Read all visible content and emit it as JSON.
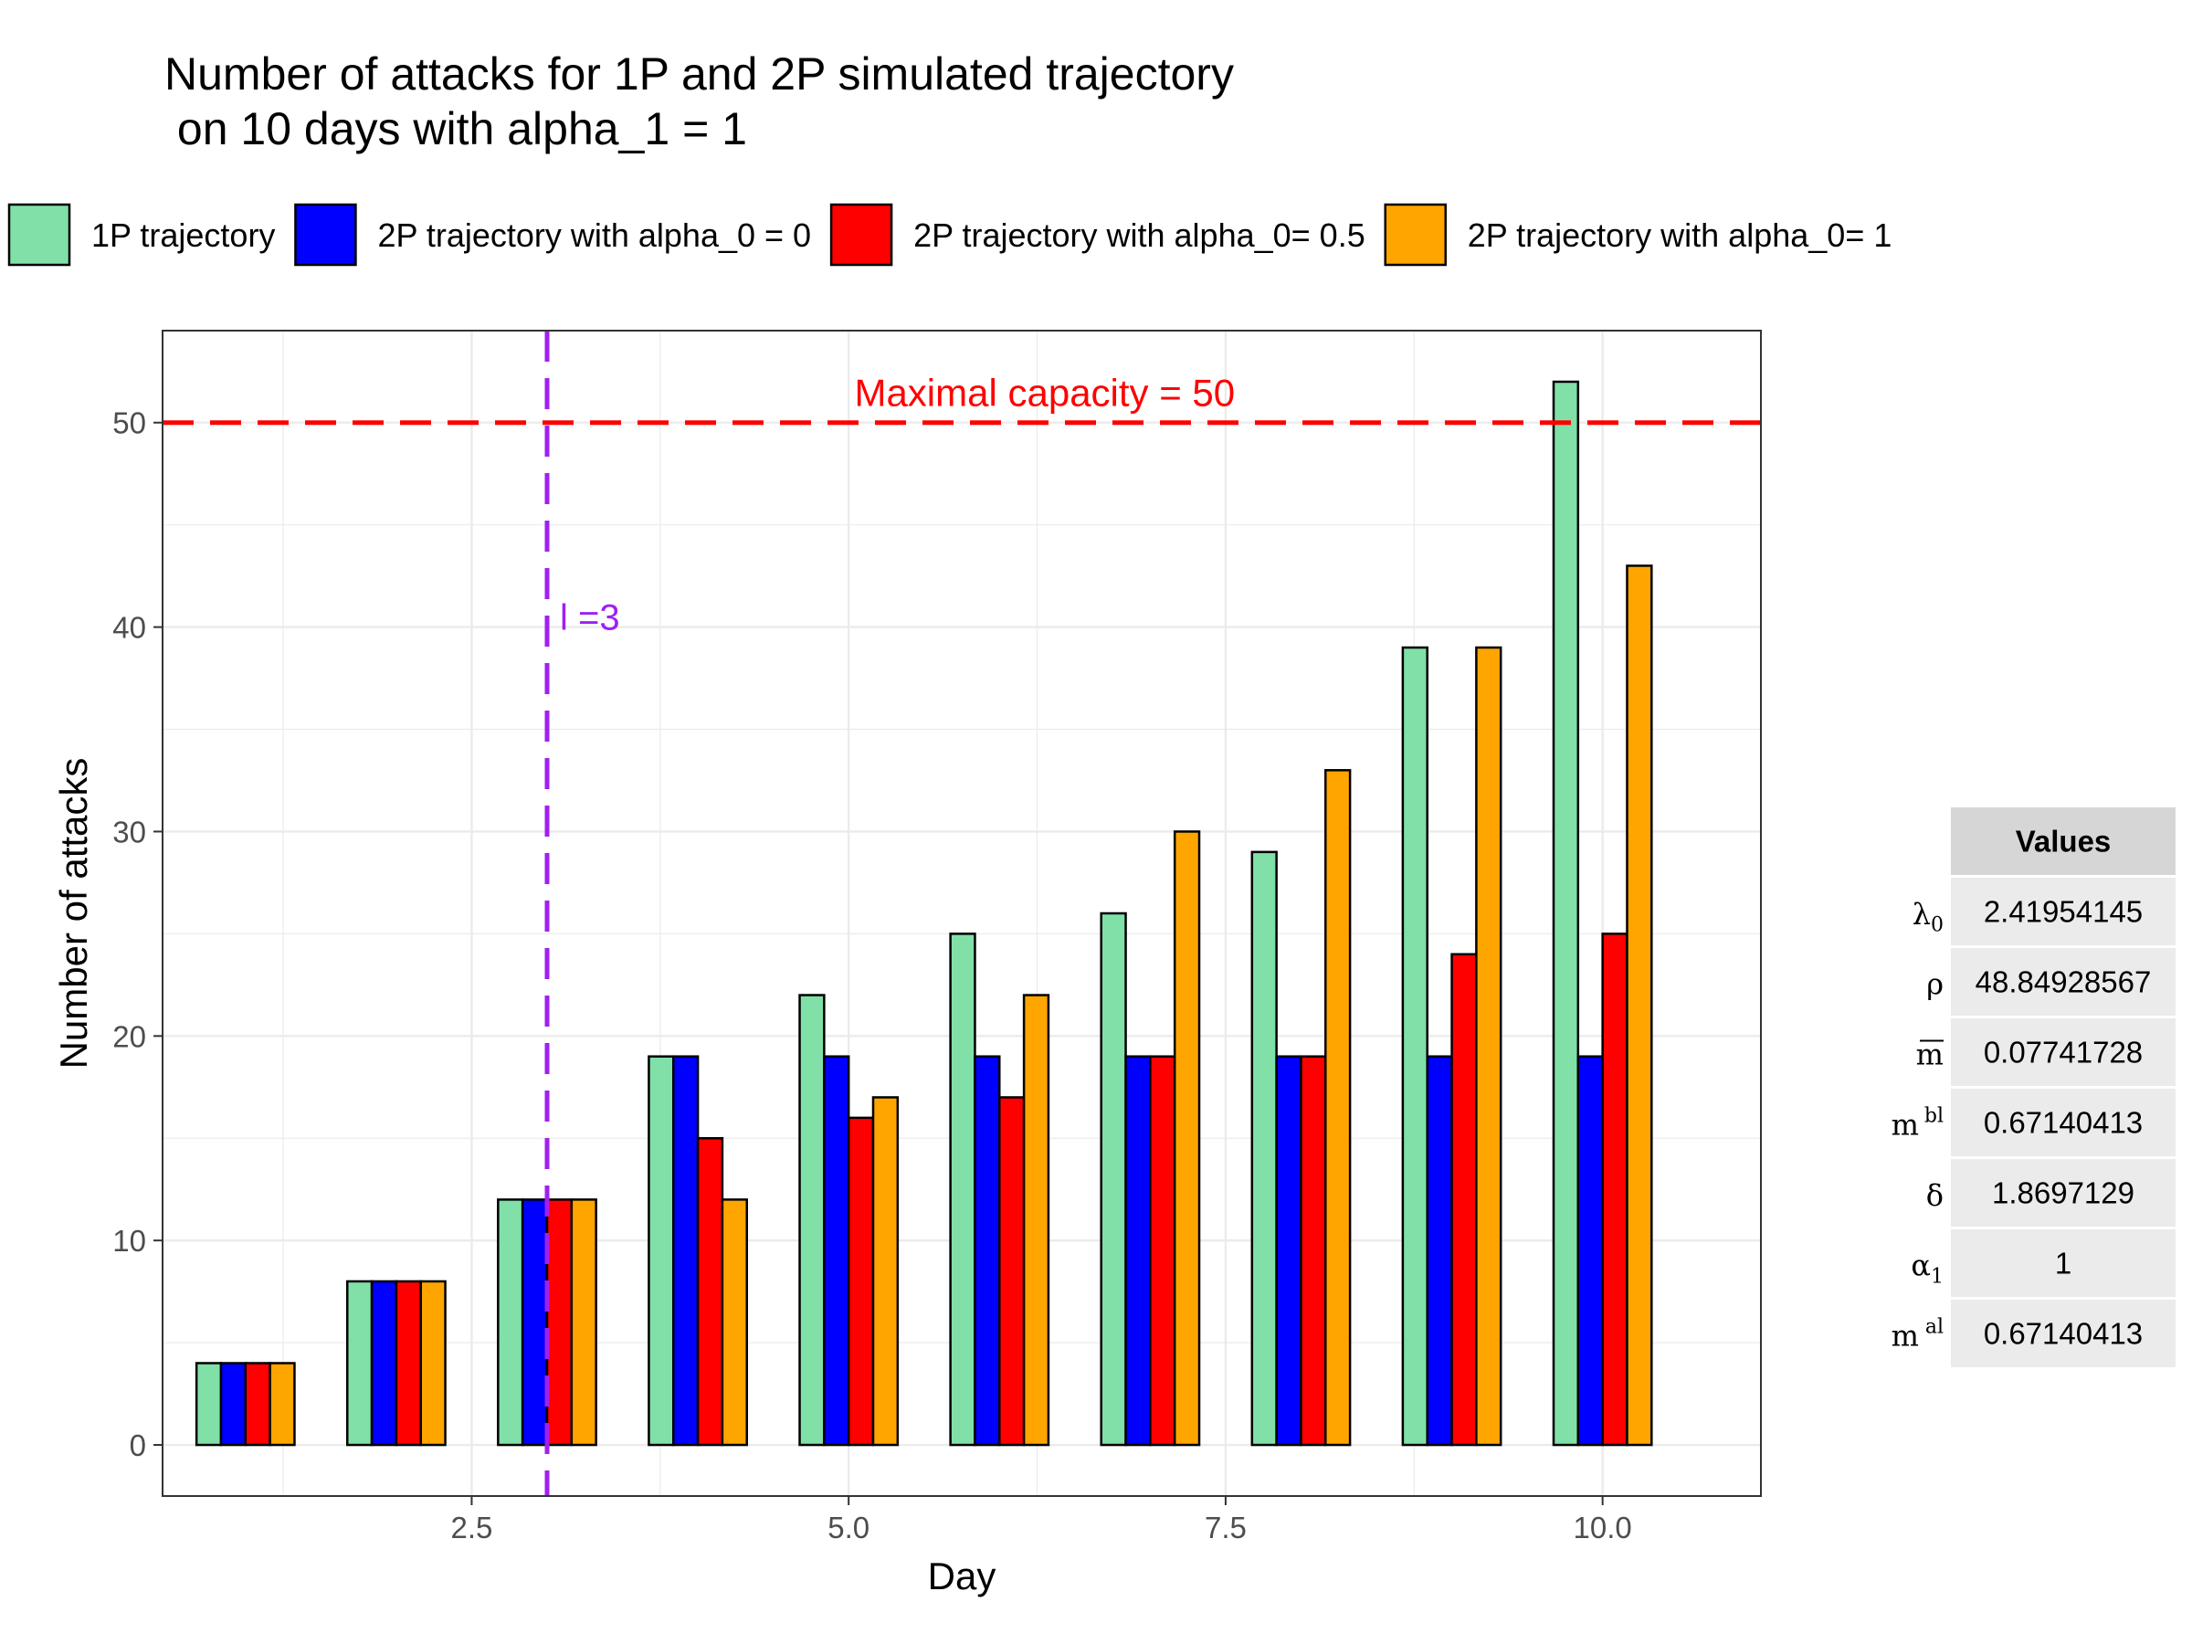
{
  "chart_data": {
    "type": "bar",
    "title_lines": [
      "Number of attacks for 1P and 2P simulated trajectory",
      " on 10 days with alpha_1 = 1"
    ],
    "xlabel": "Day",
    "ylabel": "Number of attacks",
    "x": [
      1,
      2,
      3,
      4,
      5,
      6,
      7,
      8,
      9,
      10
    ],
    "xlim": [
      0.45,
      11.05
    ],
    "ylim": [
      -2.5,
      54.5
    ],
    "x_ticks": [
      2.5,
      5.0,
      7.5,
      10.0
    ],
    "x_tick_labels": [
      "2.5",
      "5.0",
      "7.5",
      "10.0"
    ],
    "y_ticks": [
      0,
      10,
      20,
      30,
      40,
      50
    ],
    "y_tick_labels": [
      "0",
      "10",
      "20",
      "30",
      "40",
      "50"
    ],
    "grid": true,
    "legend_position": "top",
    "series": [
      {
        "name": "1P trajectory",
        "color": "#80e0a8",
        "values": [
          4,
          8,
          12,
          19,
          22,
          25,
          26,
          29,
          39,
          52
        ]
      },
      {
        "name": "2P trajectory with alpha_0 = 0",
        "color": "#0000ff",
        "values": [
          4,
          8,
          12,
          19,
          19,
          19,
          19,
          19,
          19,
          19
        ]
      },
      {
        "name": "2P trajectory with alpha_0= 0.5",
        "color": "#ff0000",
        "values": [
          4,
          8,
          12,
          15,
          16,
          17,
          19,
          19,
          24,
          25
        ]
      },
      {
        "name": "2P trajectory with alpha_0= 1",
        "color": "#ffa500",
        "values": [
          4,
          8,
          12,
          12,
          17,
          22,
          30,
          33,
          39,
          43
        ]
      }
    ],
    "hline": {
      "y": 50,
      "color": "#ff0000",
      "label": "Maximal capacity = 50",
      "label_x": 6.3
    },
    "vline": {
      "x": 3,
      "color": "#a020f0",
      "label": "l =3",
      "label_y": 40.5
    }
  },
  "param_table": {
    "header": "Values",
    "rows": [
      {
        "symbol": "λ",
        "sub": "0",
        "sup": "",
        "overline": false,
        "value": "2.41954145"
      },
      {
        "symbol": "ρ",
        "sub": "",
        "sup": "",
        "overline": false,
        "value": "48.84928567"
      },
      {
        "symbol": "m",
        "sub": "",
        "sup": "",
        "overline": true,
        "value": "0.07741728"
      },
      {
        "symbol": "m",
        "sub": "",
        "sup": "bl",
        "overline": false,
        "value": "0.67140413"
      },
      {
        "symbol": "δ",
        "sub": "",
        "sup": "",
        "overline": false,
        "value": "1.8697129"
      },
      {
        "symbol": "α",
        "sub": "1",
        "sup": "",
        "overline": false,
        "value": "1"
      },
      {
        "symbol": "m",
        "sub": "",
        "sup": "al",
        "overline": false,
        "value": "0.67140413"
      }
    ],
    "header_bg": "#d6d6d6",
    "row_bg": "#ebebeb"
  }
}
